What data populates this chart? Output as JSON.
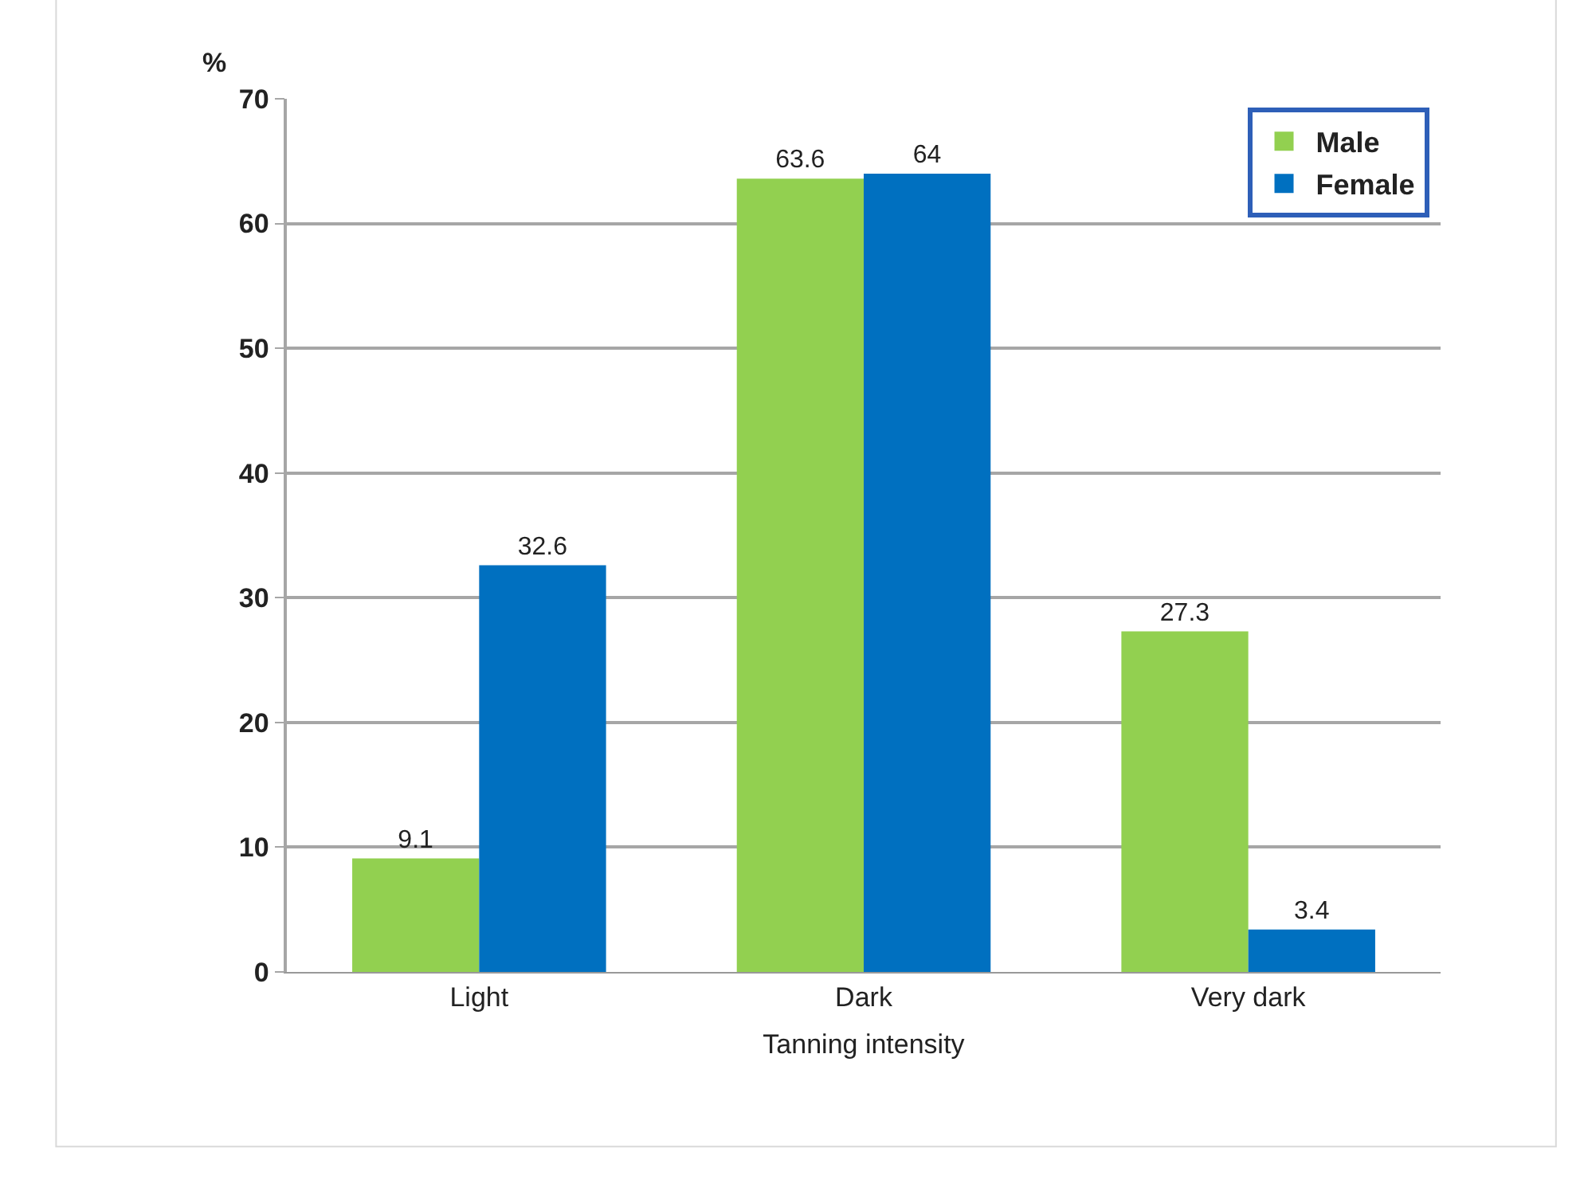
{
  "chart_data": {
    "type": "bar",
    "xlabel": "Tanning intensity",
    "ylabel": "%",
    "categories": [
      "Light",
      "Dark",
      "Very dark"
    ],
    "series": [
      {
        "name": "Male",
        "color": "#92d050",
        "values": [
          9.1,
          63.6,
          27.3
        ]
      },
      {
        "name": "Female",
        "color": "#0070c0",
        "values": [
          32.6,
          64,
          3.4
        ]
      }
    ],
    "ylim": [
      0,
      70
    ],
    "yticks": [
      0,
      10,
      20,
      30,
      40,
      50,
      60,
      70
    ],
    "grid": "y",
    "legend": "top right",
    "data_labels": true
  }
}
